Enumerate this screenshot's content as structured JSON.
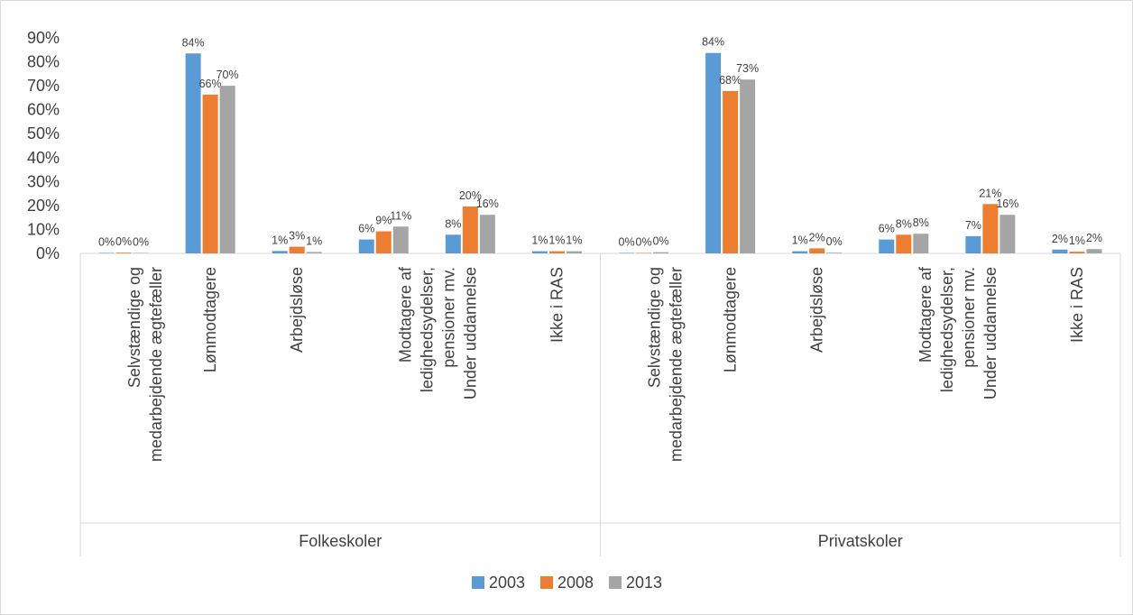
{
  "chart_data": {
    "type": "bar",
    "title": "",
    "xlabel": "",
    "ylabel": "",
    "ylim": [
      0,
      0.9
    ],
    "y_ticks": [
      "0%",
      "10%",
      "20%",
      "30%",
      "40%",
      "50%",
      "60%",
      "70%",
      "80%",
      "90%"
    ],
    "grid": false,
    "legend_position": "bottom",
    "groups": [
      {
        "label": "Folkeskoler",
        "categories": [
          "Selvstændige og medarbejdende ægtefæller",
          "Lønmodtagere",
          "Arbejdsløse",
          "Modtagere af ledighedsydelser, pensioner mv.",
          "Under uddannelse",
          "Ikke i RAS"
        ],
        "series": [
          {
            "name": "2003",
            "values": [
              0.002,
              0.835,
              0.01,
              0.058,
              0.078,
              0.009
            ],
            "labels": [
              "0%",
              "84%",
              "1%",
              "6%",
              "8%",
              "1%"
            ]
          },
          {
            "name": "2008",
            "values": [
              0.003,
              0.663,
              0.028,
              0.092,
              0.196,
              0.009
            ],
            "labels": [
              "0%",
              "66%",
              "3%",
              "9%",
              "20%",
              "1%"
            ]
          },
          {
            "name": "2013",
            "values": [
              0.002,
              0.7,
              0.006,
              0.112,
              0.161,
              0.009
            ],
            "labels": [
              "0%",
              "70%",
              "1%",
              "11%",
              "16%",
              "1%"
            ]
          }
        ]
      },
      {
        "label": "Privatskoler",
        "categories": [
          "Selvstændige og medarbejdende ægtefæller",
          "Lønmodtagere",
          "Arbejdsløse",
          "Modtagere af ledighedsydelser, pensioner mv.",
          "Under uddannelse",
          "Ikke i RAS"
        ],
        "series": [
          {
            "name": "2003",
            "values": [
              0.002,
              0.837,
              0.009,
              0.058,
              0.072,
              0.016
            ],
            "labels": [
              "0%",
              "84%",
              "1%",
              "6%",
              "7%",
              "2%"
            ]
          },
          {
            "name": "2008",
            "values": [
              0.002,
              0.678,
              0.021,
              0.078,
              0.206,
              0.007
            ],
            "labels": [
              "0%",
              "68%",
              "2%",
              "8%",
              "21%",
              "1%"
            ]
          },
          {
            "name": "2013",
            "values": [
              0.005,
              0.726,
              0.003,
              0.082,
              0.161,
              0.018
            ],
            "labels": [
              "0%",
              "73%",
              "0%",
              "8%",
              "16%",
              "2%"
            ]
          }
        ]
      }
    ],
    "legend": [
      {
        "name": "2003",
        "color": "#5b9bd5"
      },
      {
        "name": "2008",
        "color": "#ed7d31"
      },
      {
        "name": "2013",
        "color": "#a5a5a5"
      }
    ]
  }
}
